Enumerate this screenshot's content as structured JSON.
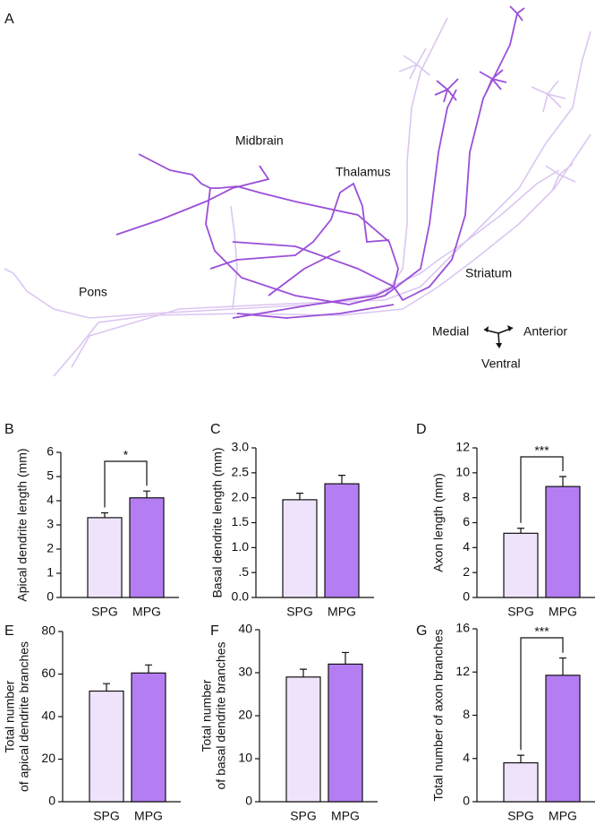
{
  "panel_a": {
    "label": "A",
    "annotations": [
      "Midbrain",
      "Thalamus",
      "Pons",
      "Striatum",
      "Medial",
      "Anterior",
      "Ventral"
    ]
  },
  "chart_data": [
    {
      "type": "bar",
      "panel_label": "B",
      "ylabel": [
        "Apical dendrite length (mm)"
      ],
      "categories": [
        "SPG",
        "MPG"
      ],
      "values": [
        3.3,
        4.12
      ],
      "errors": [
        0.2,
        0.28
      ],
      "colors": [
        "#efe3fb",
        "#b47ef2"
      ],
      "ylim": [
        0,
        6
      ],
      "yticks": [
        0,
        1,
        2,
        3,
        4,
        5,
        6
      ],
      "significance": "*"
    },
    {
      "type": "bar",
      "panel_label": "C",
      "ylabel": [
        "Basal dendrite length (mm)"
      ],
      "categories": [
        "SPG",
        "MPG"
      ],
      "values": [
        1.96,
        2.28
      ],
      "errors": [
        0.13,
        0.17
      ],
      "colors": [
        "#efe3fb",
        "#b47ef2"
      ],
      "ylim": [
        0,
        3
      ],
      "yticks": [
        {
          "value": 0,
          "label": "0.0"
        },
        {
          "value": 0.5,
          "label": ".5"
        },
        {
          "value": 1,
          "label": "1.0"
        },
        {
          "value": 1.5,
          "label": "1.5"
        },
        {
          "value": 2,
          "label": "2.0"
        },
        {
          "value": 2.5,
          "label": "2.5"
        },
        {
          "value": 3,
          "label": "3.0"
        }
      ]
    },
    {
      "type": "bar",
      "panel_label": "D",
      "ylabel": [
        "Axon length (mm)"
      ],
      "categories": [
        "SPG",
        "MPG"
      ],
      "values": [
        5.15,
        8.9
      ],
      "errors": [
        0.4,
        0.8
      ],
      "colors": [
        "#efe3fb",
        "#b47ef2"
      ],
      "ylim": [
        0,
        12
      ],
      "yticks": [
        0,
        2,
        4,
        6,
        8,
        10,
        12
      ],
      "significance": "***"
    },
    {
      "type": "bar",
      "panel_label": "E",
      "ylabel": [
        "Total number",
        "of apical dendrite branches"
      ],
      "categories": [
        "SPG",
        "MPG"
      ],
      "values": [
        52,
        60.5
      ],
      "errors": [
        3.5,
        3.8
      ],
      "colors": [
        "#efe3fb",
        "#b47ef2"
      ],
      "ylim": [
        0,
        80
      ],
      "yticks": [
        0,
        20,
        40,
        60,
        80
      ]
    },
    {
      "type": "bar",
      "panel_label": "F",
      "ylabel": [
        "Total number",
        "of basal dendrite branches"
      ],
      "categories": [
        "SPG",
        "MPG"
      ],
      "values": [
        29,
        32
      ],
      "errors": [
        1.8,
        2.7
      ],
      "colors": [
        "#efe3fb",
        "#b47ef2"
      ],
      "ylim": [
        0,
        40
      ],
      "yticks": [
        0,
        10,
        20,
        30,
        40
      ]
    },
    {
      "type": "bar",
      "panel_label": "G",
      "ylabel": [
        "Total number of axon branches"
      ],
      "categories": [
        "SPG",
        "MPG"
      ],
      "values": [
        3.6,
        11.7
      ],
      "errors": [
        0.7,
        1.6
      ],
      "colors": [
        "#efe3fb",
        "#b47ef2"
      ],
      "ylim": [
        0,
        16
      ],
      "yticks": [
        0,
        4,
        8,
        12,
        16
      ],
      "significance": "***"
    }
  ]
}
